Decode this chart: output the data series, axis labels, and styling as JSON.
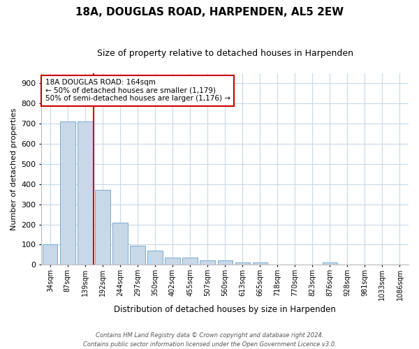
{
  "title": "18A, DOUGLAS ROAD, HARPENDEN, AL5 2EW",
  "subtitle": "Size of property relative to detached houses in Harpenden",
  "bar_labels": [
    "34sqm",
    "87sqm",
    "139sqm",
    "192sqm",
    "244sqm",
    "297sqm",
    "350sqm",
    "402sqm",
    "455sqm",
    "507sqm",
    "560sqm",
    "613sqm",
    "665sqm",
    "718sqm",
    "770sqm",
    "823sqm",
    "876sqm",
    "928sqm",
    "981sqm",
    "1033sqm",
    "1086sqm"
  ],
  "bar_values": [
    100,
    710,
    710,
    370,
    210,
    95,
    70,
    35,
    35,
    20,
    20,
    10,
    10,
    0,
    0,
    0,
    10,
    0,
    0,
    0,
    0
  ],
  "bar_color": "#c8d8e8",
  "bar_edge_color": "#7aabcc",
  "vline_color": "#cc0000",
  "vline_x_index": 2.5,
  "ylim_max": 950,
  "yticks": [
    0,
    100,
    200,
    300,
    400,
    500,
    600,
    700,
    800,
    900
  ],
  "ylabel": "Number of detached properties",
  "xlabel": "Distribution of detached houses by size in Harpenden",
  "annotation_title": "18A DOUGLAS ROAD: 164sqm",
  "annotation_line1": "← 50% of detached houses are smaller (1,179)",
  "annotation_line2": "50% of semi-detached houses are larger (1,176) →",
  "annotation_box_color": "#ffffff",
  "annotation_box_edge": "#cc0000",
  "footer_line1": "Contains HM Land Registry data © Crown copyright and database right 2024.",
  "footer_line2": "Contains public sector information licensed under the Open Government Licence v3.0.",
  "bg_color": "#ffffff",
  "grid_color": "#c8d8e8",
  "title_fontsize": 11,
  "subtitle_fontsize": 9
}
